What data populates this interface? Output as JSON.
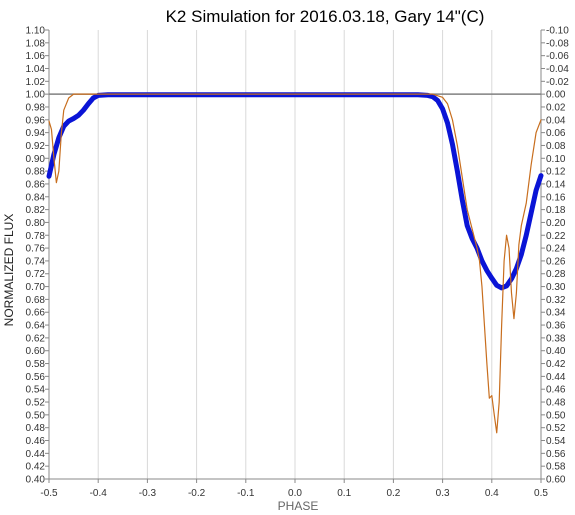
{
  "chart_data": {
    "type": "line",
    "title": "K2 Simulation for 2016.03.18, Gary 14\"(C)",
    "xlabel": "PHASE",
    "ylabel": "NORMALIZED FLUX",
    "xlim": [
      -0.5,
      0.5
    ],
    "ylim": [
      0.4,
      1.1
    ],
    "y2lim": [
      0.6,
      -0.1
    ],
    "x_ticks": [
      "-0.5",
      "-0.4",
      "-0.3",
      "-0.2",
      "-0.1",
      "0.0",
      "0.1",
      "0.2",
      "0.3",
      "0.4",
      "0.5"
    ],
    "y_ticks": [
      "0.40",
      "0.42",
      "0.44",
      "0.46",
      "0.48",
      "0.50",
      "0.52",
      "0.54",
      "0.56",
      "0.58",
      "0.60",
      "0.62",
      "0.64",
      "0.66",
      "0.68",
      "0.70",
      "0.72",
      "0.74",
      "0.76",
      "0.78",
      "0.80",
      "0.82",
      "0.84",
      "0.86",
      "0.88",
      "0.90",
      "0.92",
      "0.94",
      "0.96",
      "0.98",
      "1.00",
      "1.02",
      "1.04",
      "1.06",
      "1.08",
      "1.10"
    ],
    "y2_ticks": [
      "0.60",
      "0.58",
      "0.56",
      "0.54",
      "0.52",
      "0.50",
      "0.48",
      "0.46",
      "0.44",
      "0.42",
      "0.40",
      "0.38",
      "0.36",
      "0.34",
      "0.32",
      "0.30",
      "0.28",
      "0.26",
      "0.24",
      "0.22",
      "0.20",
      "0.18",
      "0.16",
      "0.14",
      "0.12",
      "0.10",
      "0.08",
      "0.06",
      "0.04",
      "0.02",
      "0.00",
      "-0.02",
      "-0.04",
      "-0.06",
      "-0.08",
      "-0.10"
    ],
    "grid": "vertical",
    "reference_line": 1.0,
    "series": [
      {
        "color": "#0a14d6",
        "x": [
          -0.5,
          -0.49,
          -0.48,
          -0.47,
          -0.46,
          -0.45,
          -0.44,
          -0.43,
          -0.42,
          -0.41,
          -0.4,
          -0.38,
          -0.3,
          -0.2,
          -0.1,
          0.0,
          0.1,
          0.2,
          0.25,
          0.27,
          0.28,
          0.29,
          0.3,
          0.31,
          0.32,
          0.33,
          0.34,
          0.35,
          0.36,
          0.37,
          0.38,
          0.39,
          0.4,
          0.41,
          0.42,
          0.43,
          0.44,
          0.45,
          0.46,
          0.47,
          0.48,
          0.49,
          0.5
        ],
        "values": [
          0.872,
          0.906,
          0.932,
          0.95,
          0.958,
          0.962,
          0.967,
          0.975,
          0.985,
          0.994,
          0.998,
          0.999,
          0.999,
          0.999,
          0.999,
          0.999,
          0.999,
          0.999,
          0.999,
          0.998,
          0.996,
          0.99,
          0.977,
          0.955,
          0.922,
          0.88,
          0.835,
          0.795,
          0.775,
          0.76,
          0.74,
          0.725,
          0.713,
          0.702,
          0.698,
          0.701,
          0.712,
          0.728,
          0.75,
          0.78,
          0.815,
          0.85,
          0.873
        ]
      },
      {
        "color": "#c86e1e",
        "x": [
          -0.5,
          -0.495,
          -0.49,
          -0.485,
          -0.48,
          -0.475,
          -0.47,
          -0.46,
          -0.45,
          -0.44,
          -0.43,
          -0.42,
          -0.4,
          -0.3,
          -0.2,
          -0.1,
          0.0,
          0.1,
          0.2,
          0.25,
          0.28,
          0.3,
          0.31,
          0.32,
          0.33,
          0.34,
          0.35,
          0.36,
          0.37,
          0.375,
          0.38,
          0.385,
          0.39,
          0.395,
          0.4,
          0.405,
          0.41,
          0.415,
          0.42,
          0.425,
          0.43,
          0.435,
          0.44,
          0.445,
          0.45,
          0.455,
          0.46,
          0.47,
          0.48,
          0.49,
          0.5
        ],
        "values": [
          0.958,
          0.945,
          0.9,
          0.862,
          0.88,
          0.938,
          0.975,
          0.994,
          1.0,
          1.0,
          1.0,
          1.0,
          1.0,
          1.0,
          1.0,
          1.0,
          1.0,
          1.0,
          1.0,
          1.0,
          1.0,
          0.995,
          0.985,
          0.96,
          0.92,
          0.87,
          0.82,
          0.79,
          0.76,
          0.74,
          0.7,
          0.64,
          0.58,
          0.526,
          0.53,
          0.5,
          0.472,
          0.52,
          0.64,
          0.74,
          0.78,
          0.76,
          0.69,
          0.65,
          0.69,
          0.765,
          0.795,
          0.83,
          0.89,
          0.94,
          0.96
        ]
      }
    ]
  }
}
